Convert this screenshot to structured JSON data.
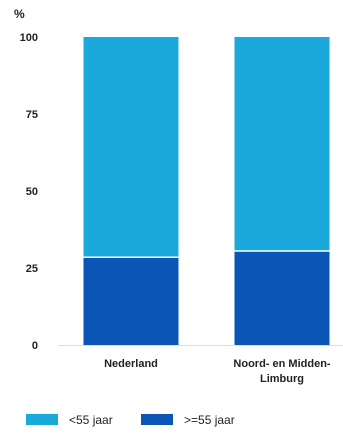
{
  "chart_data": {
    "type": "bar",
    "stacked": true,
    "ylabel": "%",
    "ylim": [
      0,
      100
    ],
    "yticks": [
      0,
      25,
      50,
      75,
      100
    ],
    "grid": false,
    "legend_position": "bottom",
    "categories": [
      "Nederland",
      "Noord- en Midden-\nLimburg"
    ],
    "series": [
      {
        "name": ">=55 jaar",
        "values": [
          28.5,
          30.5
        ],
        "color": "#0a55b5"
      },
      {
        "name": "<55 jaar",
        "values": [
          71.5,
          69.5
        ],
        "color": "#1ba8da"
      }
    ],
    "legend_order": [
      "<55 jaar",
      ">=55 jaar"
    ]
  }
}
